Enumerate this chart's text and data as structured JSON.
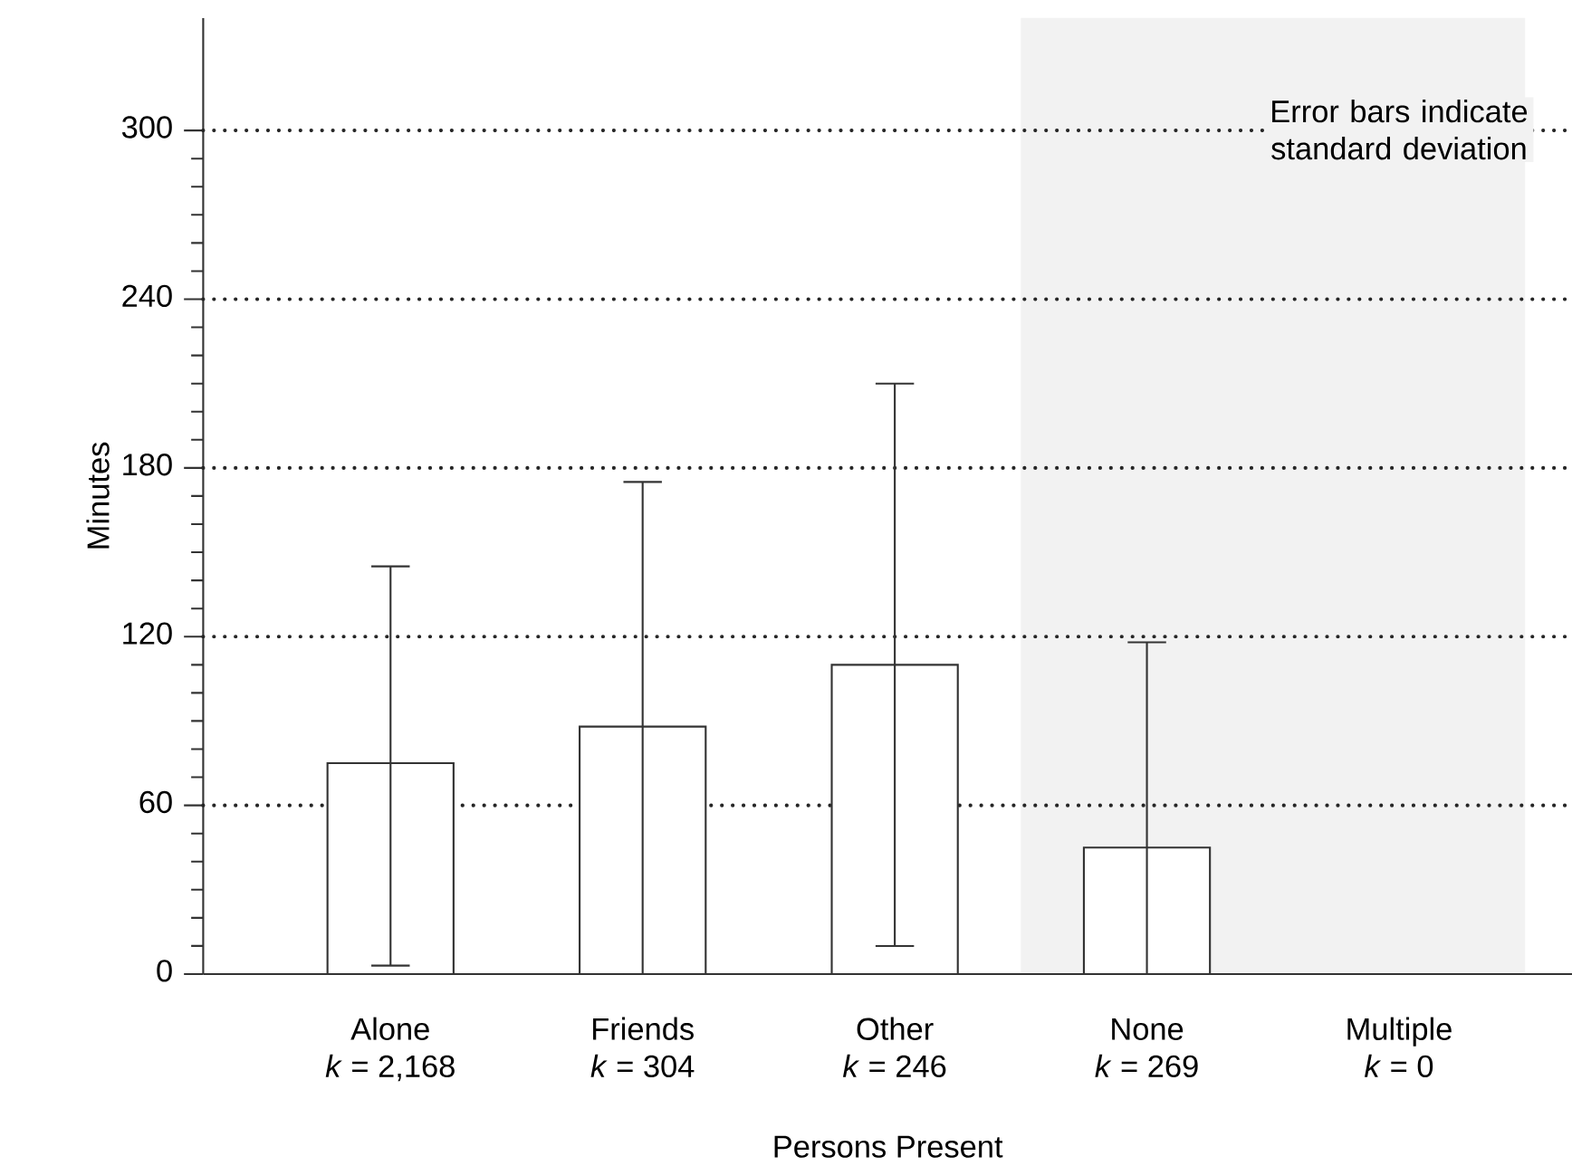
{
  "chart_data": {
    "type": "bar",
    "xlabel": "Persons Present",
    "ylabel": "Minutes",
    "categories": [
      "Alone\n*k* = 2,168",
      "Friends\n*k* = 304",
      "Other\n*k* = 246",
      "None\n*k* = 269",
      "Multiple\n*k* = 0"
    ],
    "values": [
      75,
      88,
      110,
      45,
      null
    ],
    "errors": [
      [
        3,
        145
      ],
      [
        0,
        175
      ],
      [
        10,
        210
      ],
      [
        0,
        118
      ],
      null
    ],
    "color": "#ffffff",
    "ylim": [
      0,
      340
    ],
    "yticks": [
      0,
      60,
      120,
      180,
      240,
      300
    ],
    "grid": "y",
    "annotations": [
      "Error bars indicate standard deviation"
    ]
  }
}
